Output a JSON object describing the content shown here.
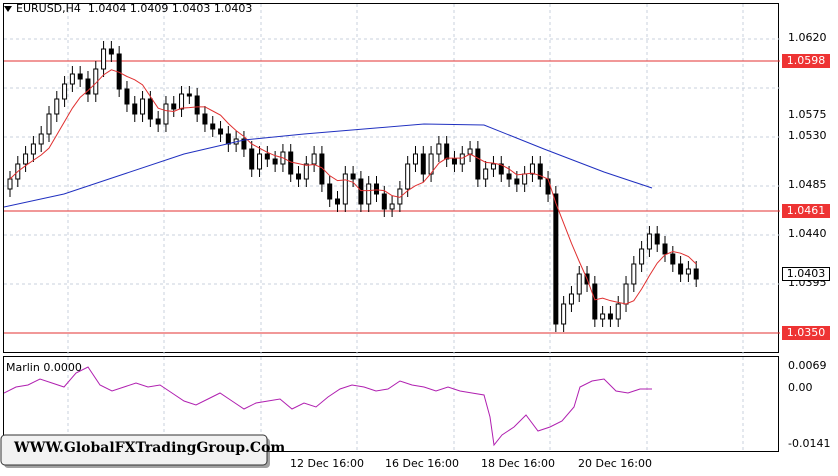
{
  "header": {
    "symbol": "EURUSD,H4",
    "ohlc": "1.0404 1.0409 1.0403 1.0403"
  },
  "price_axis": {
    "ticks": [
      "1.0620",
      "1.0575",
      "1.0530",
      "1.0485",
      "1.0440",
      "1.0395"
    ]
  },
  "levels": [
    "1.0598",
    "1.0461",
    "1.0350"
  ],
  "current_price": "1.0403",
  "indicator": {
    "title": "Marlin 0.0000",
    "ticks": [
      "0.0069",
      "0.00",
      "-0.0141"
    ]
  },
  "time_axis": {
    "labels": [
      "12 Dec 16:00",
      "16 Dec 16:00",
      "18 Dec 16:00",
      "20 Dec 16:00"
    ]
  },
  "watermark": "WWW.GlobalFXTradingGroup.Com",
  "colors": {
    "level_line": "#e33030",
    "fast_ma": "#e03030",
    "slow_ma": "#2030c0",
    "indicator_line": "#b020b0",
    "grid": "#c8d2dc"
  }
}
